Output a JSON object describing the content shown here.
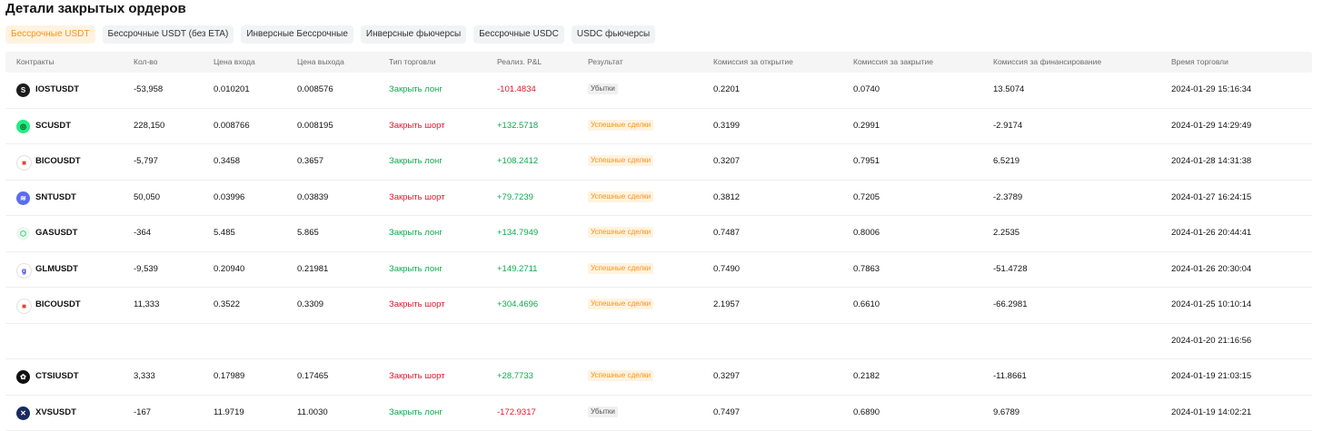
{
  "page_title": "Детали закрытых ордеров",
  "tabs": [
    {
      "label": "Бессрочные USDT",
      "active": true
    },
    {
      "label": "Бессрочные USDT (без ETA)",
      "active": false
    },
    {
      "label": "Инверсные Бессрочные",
      "active": false
    },
    {
      "label": "Инверсные фьючерсы",
      "active": false
    },
    {
      "label": "Бессрочные USDC",
      "active": false
    },
    {
      "label": "USDC фьючерсы",
      "active": false
    }
  ],
  "columns": [
    "Контракты",
    "Кол-во",
    "Цена входа",
    "Цена выхода",
    "Тип торговли",
    "Реализ. P&L",
    "Результат",
    "Комиссия за открытие",
    "Комиссия за закрытие",
    "Комиссия за финансирование",
    "Время торговли"
  ],
  "colors": {
    "accent": "#f7931a",
    "profit": "#0eaa4f",
    "loss": "#e0182d"
  },
  "rows": [
    {
      "icon": "iost-icon",
      "symbol": "IOSTUSDT",
      "qty": "-53,958",
      "entry": "0.010201",
      "exit": "0.008576",
      "type": "Закрыть лонг",
      "type_kind": "long",
      "pnl": "-101.4834",
      "pnl_kind": "neg",
      "result": "Убытки",
      "result_kind": "loss",
      "fee_open": "0.2201",
      "fee_close": "0.0740",
      "fee_funding": "13.5074",
      "time": "2024-01-29 15:16:34"
    },
    {
      "icon": "sc-icon",
      "symbol": "SCUSDT",
      "qty": "228,150",
      "entry": "0.008766",
      "exit": "0.008195",
      "type": "Закрыть шорт",
      "type_kind": "short",
      "pnl": "+132.5718",
      "pnl_kind": "pos",
      "result": "Успешные сделки",
      "result_kind": "win",
      "fee_open": "0.3199",
      "fee_close": "0.2991",
      "fee_funding": "-2.9174",
      "time": "2024-01-29 14:29:49"
    },
    {
      "icon": "bico-icon",
      "symbol": "BICOUSDT",
      "qty": "-5,797",
      "entry": "0.3458",
      "exit": "0.3657",
      "type": "Закрыть лонг",
      "type_kind": "long",
      "pnl": "+108.2412",
      "pnl_kind": "pos",
      "result": "Успешные сделки",
      "result_kind": "win",
      "fee_open": "0.3207",
      "fee_close": "0.7951",
      "fee_funding": "6.5219",
      "time": "2024-01-28 14:31:38"
    },
    {
      "icon": "snt-icon",
      "symbol": "SNTUSDT",
      "qty": "50,050",
      "entry": "0.03996",
      "exit": "0.03839",
      "type": "Закрыть шорт",
      "type_kind": "short",
      "pnl": "+79.7239",
      "pnl_kind": "pos",
      "result": "Успешные сделки",
      "result_kind": "win",
      "fee_open": "0.3812",
      "fee_close": "0.7205",
      "fee_funding": "-2.3789",
      "time": "2024-01-27 16:24:15"
    },
    {
      "icon": "gas-icon",
      "symbol": "GASUSDT",
      "qty": "-364",
      "entry": "5.485",
      "exit": "5.865",
      "type": "Закрыть лонг",
      "type_kind": "long",
      "pnl": "+134.7949",
      "pnl_kind": "pos",
      "result": "Успешные сделки",
      "result_kind": "win",
      "fee_open": "0.7487",
      "fee_close": "0.8006",
      "fee_funding": "2.2535",
      "time": "2024-01-26 20:44:41"
    },
    {
      "icon": "glm-icon",
      "symbol": "GLMUSDT",
      "qty": "-9,539",
      "entry": "0.20940",
      "exit": "0.21981",
      "type": "Закрыть лонг",
      "type_kind": "long",
      "pnl": "+149.2711",
      "pnl_kind": "pos",
      "result": "Успешные сделки",
      "result_kind": "win",
      "fee_open": "0.7490",
      "fee_close": "0.7863",
      "fee_funding": "-51.4728",
      "time": "2024-01-26 20:30:04"
    },
    {
      "icon": "bico-icon",
      "symbol": "BICOUSDT",
      "qty": "11,333",
      "entry": "0.3522",
      "exit": "0.3309",
      "type": "Закрыть шорт",
      "type_kind": "short",
      "pnl": "+304.4696",
      "pnl_kind": "pos",
      "result": "Успешные сделки",
      "result_kind": "win",
      "fee_open": "2.1957",
      "fee_close": "0.6610",
      "fee_funding": "-66.2981",
      "time": "2024-01-25 10:10:14"
    },
    {
      "icon": "",
      "symbol": "",
      "qty": "",
      "entry": "",
      "exit": "",
      "type": "",
      "type_kind": "",
      "pnl": "",
      "pnl_kind": "",
      "result": "",
      "result_kind": "",
      "fee_open": "",
      "fee_close": "",
      "fee_funding": "",
      "time": "2024-01-20 21:16:56"
    },
    {
      "icon": "ctsi-icon",
      "symbol": "CTSIUSDT",
      "qty": "3,333",
      "entry": "0.17989",
      "exit": "0.17465",
      "type": "Закрыть шорт",
      "type_kind": "short",
      "pnl": "+28.7733",
      "pnl_kind": "pos",
      "result": "Успешные сделки",
      "result_kind": "win",
      "fee_open": "0.3297",
      "fee_close": "0.2182",
      "fee_funding": "-11.8661",
      "time": "2024-01-19 21:03:15"
    },
    {
      "icon": "xvs-icon",
      "symbol": "XVSUSDT",
      "qty": "-167",
      "entry": "11.9719",
      "exit": "11.0030",
      "type": "Закрыть лонг",
      "type_kind": "long",
      "pnl": "-172.9317",
      "pnl_kind": "neg",
      "result": "Убытки",
      "result_kind": "loss",
      "fee_open": "0.7497",
      "fee_close": "0.6890",
      "fee_funding": "9.6789",
      "time": "2024-01-19 14:02:21"
    }
  ]
}
